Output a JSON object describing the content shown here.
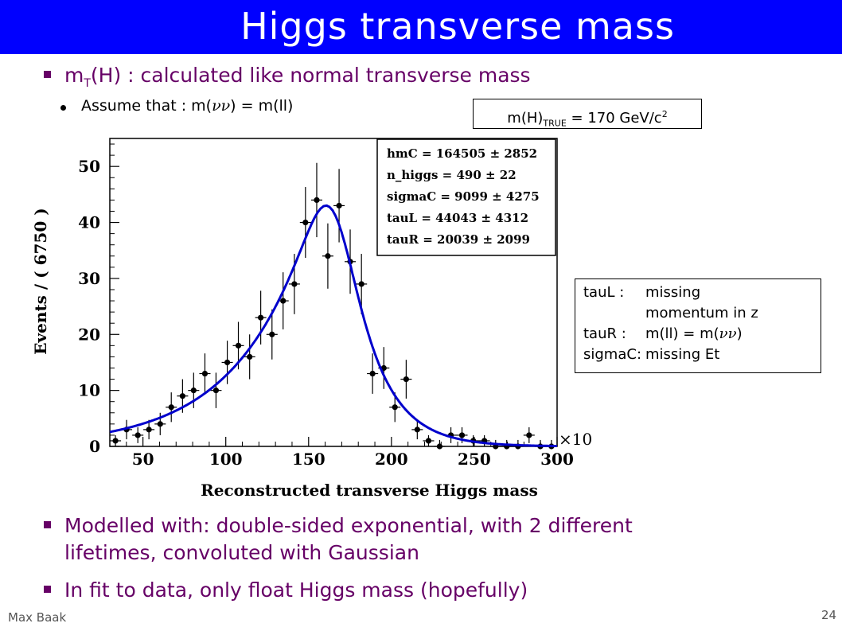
{
  "title": "Higgs transverse mass",
  "bullets": {
    "b1_main": "m",
    "b1_sub": "T",
    "b1_rest": "(H) : calculated like normal transverse mass",
    "sub1_pre": "Assume that : m(",
    "sub1_nu": "νν",
    "sub1_post": ") = m(ll)",
    "b2_line1": "Modelled with: double-sided exponential, with 2 different",
    "b2_line2": "lifetimes, convoluted with Gaussian",
    "b3": "In fit to data, only float Higgs mass (hopefully)"
  },
  "true_mass": {
    "pre": "m(H)",
    "sub": "TRUE",
    "mid": " = 170 GeV/c",
    "sup": "2"
  },
  "legend_box": {
    "rows": [
      {
        "key": "tauL :",
        "val": "missing"
      },
      {
        "key": "",
        "val": "momentum in z"
      },
      {
        "key": "tauR :",
        "val_pre": "m(ll) = m(",
        "val_nu": "νν",
        "val_post": ")"
      },
      {
        "key": "sigmaC:",
        "val": "missing Et"
      }
    ]
  },
  "footer": {
    "author": "Max Baak",
    "page": "24"
  },
  "colors": {
    "title_bar": "#0000ff",
    "bullet_text": "#660066",
    "fit_curve": "#0000cc"
  },
  "chart_data": {
    "type": "scatter",
    "xlabel": "Reconstructed transverse Higgs mass",
    "ylabel": "Events / ( 6750 )",
    "x_multiplier": "×10",
    "xlim": [
      30,
      300
    ],
    "ylim": [
      0,
      55
    ],
    "xticks": [
      50,
      100,
      150,
      200,
      250,
      300
    ],
    "yticks": [
      0,
      10,
      20,
      30,
      40,
      50
    ],
    "points": [
      {
        "x": 33.4,
        "y": 1
      },
      {
        "x": 40.1,
        "y": 3
      },
      {
        "x": 46.9,
        "y": 2
      },
      {
        "x": 53.6,
        "y": 3
      },
      {
        "x": 60.4,
        "y": 4
      },
      {
        "x": 67.1,
        "y": 7
      },
      {
        "x": 73.9,
        "y": 9
      },
      {
        "x": 80.6,
        "y": 10
      },
      {
        "x": 87.4,
        "y": 13
      },
      {
        "x": 94.1,
        "y": 10
      },
      {
        "x": 100.9,
        "y": 15
      },
      {
        "x": 107.6,
        "y": 18
      },
      {
        "x": 114.4,
        "y": 16
      },
      {
        "x": 121.1,
        "y": 23
      },
      {
        "x": 127.9,
        "y": 20
      },
      {
        "x": 134.6,
        "y": 26
      },
      {
        "x": 141.4,
        "y": 29
      },
      {
        "x": 148.1,
        "y": 40
      },
      {
        "x": 154.9,
        "y": 44
      },
      {
        "x": 161.6,
        "y": 34
      },
      {
        "x": 168.4,
        "y": 43
      },
      {
        "x": 175.1,
        "y": 33
      },
      {
        "x": 181.9,
        "y": 29
      },
      {
        "x": 188.6,
        "y": 13
      },
      {
        "x": 195.4,
        "y": 14
      },
      {
        "x": 202.1,
        "y": 7
      },
      {
        "x": 208.9,
        "y": 12
      },
      {
        "x": 215.6,
        "y": 3
      },
      {
        "x": 222.4,
        "y": 1
      },
      {
        "x": 229.1,
        "y": 0
      },
      {
        "x": 235.9,
        "y": 2
      },
      {
        "x": 242.6,
        "y": 2
      },
      {
        "x": 249.4,
        "y": 1
      },
      {
        "x": 256.1,
        "y": 1
      },
      {
        "x": 262.9,
        "y": 0
      },
      {
        "x": 269.6,
        "y": 0
      },
      {
        "x": 276.4,
        "y": 0
      },
      {
        "x": 283.1,
        "y": 2
      },
      {
        "x": 289.9,
        "y": 0
      },
      {
        "x": 296.6,
        "y": 0
      }
    ],
    "fit": {
      "hmC": 164.505,
      "sigmaC": 9.099,
      "tauL": 44.043,
      "tauR": 20.039,
      "peak": 43
    },
    "fit_params_box": [
      "hmC = 164505 ± 2852",
      "n_higgs = 490 ± 22",
      "sigmaC = 9099 ± 4275",
      "tauL = 44043 ± 4312",
      "tauR = 20039 ± 2099"
    ]
  }
}
